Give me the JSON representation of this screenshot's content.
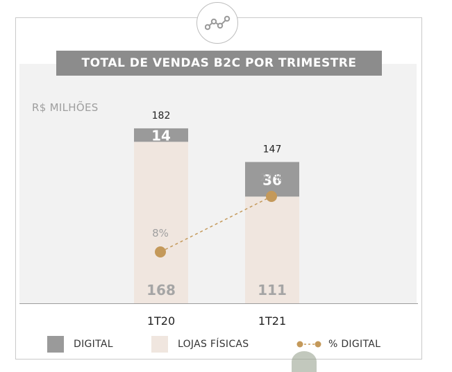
{
  "header": {
    "title": "TOTAL DE VENDAS B2C POR TRIMESTRE",
    "logo_icon": "line-chart-nodes-icon"
  },
  "chart_data": {
    "type": "bar",
    "stacked": true,
    "title": "TOTAL DE VENDAS B2C POR TRIMESTRE",
    "unit_label": "R$ MILHÕES",
    "categories": [
      "1T20",
      "1T21"
    ],
    "series": [
      {
        "name": "LOJAS FÍSICAS",
        "values": [
          168,
          111
        ],
        "value_labels": [
          "168",
          "111"
        ],
        "color": "#f0e6df"
      },
      {
        "name": "DIGITAL",
        "values": [
          14,
          36
        ],
        "value_labels": [
          "14",
          "36"
        ],
        "color": "#9a9a9a"
      }
    ],
    "totals": [
      182,
      147
    ],
    "total_labels": [
      "182",
      "147"
    ],
    "line_series": {
      "name": "% DIGITAL",
      "values": [
        8,
        24
      ],
      "labels": [
        "8%",
        "24%"
      ],
      "color": "#c4995a",
      "style": "dashed"
    },
    "ylim": [
      0,
      200
    ],
    "grid": false,
    "legend_position": "bottom"
  },
  "legend": [
    {
      "label": "DIGITAL",
      "color": "#9a9a9a",
      "kind": "swatch"
    },
    {
      "label": "LOJAS FÍSICAS",
      "color": "#f0e6df",
      "kind": "swatch"
    },
    {
      "label": "% DIGITAL",
      "color": "#c4995a",
      "kind": "line"
    }
  ]
}
